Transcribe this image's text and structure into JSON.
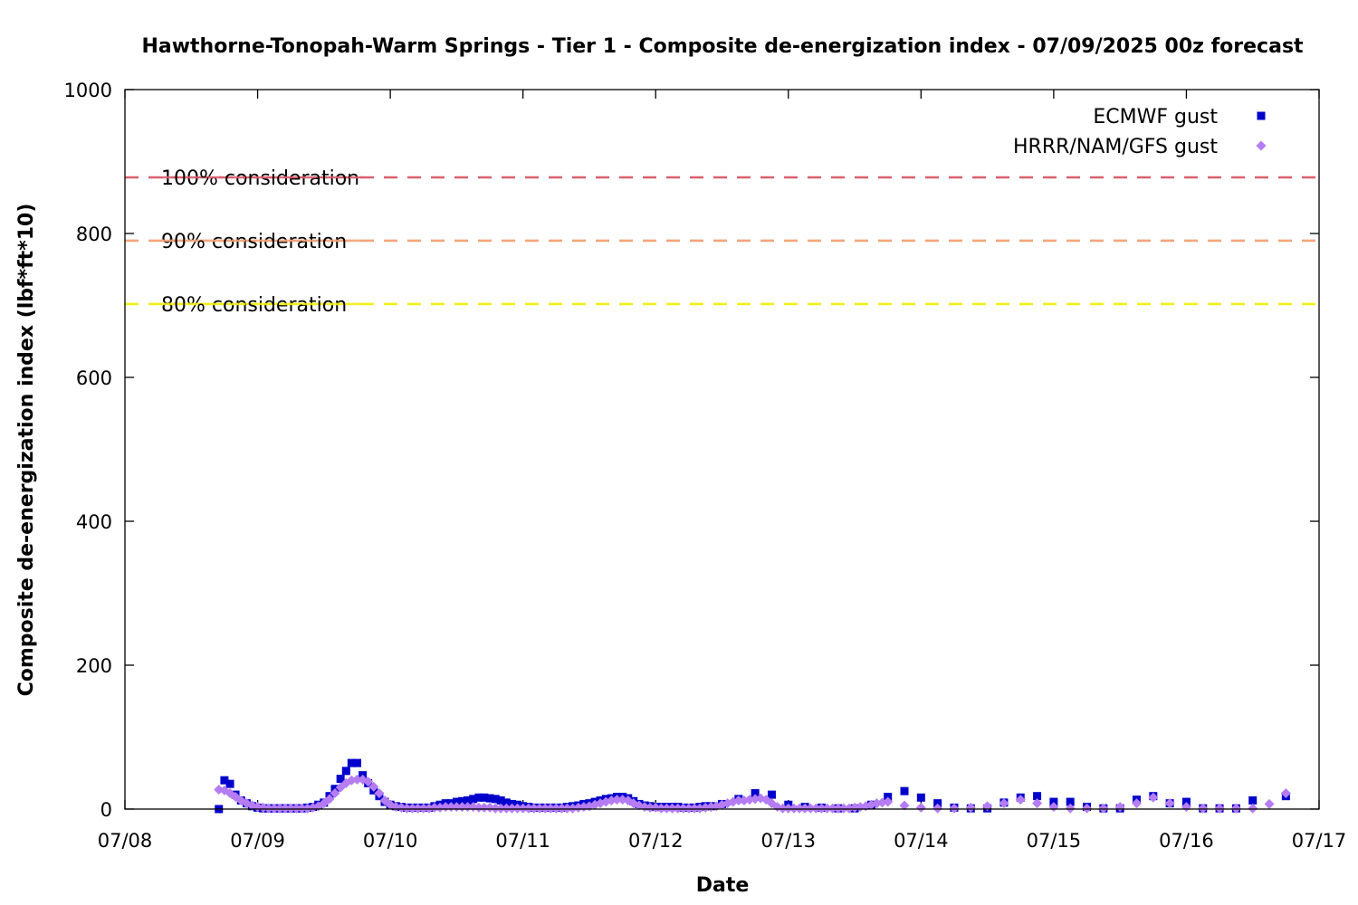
{
  "chart_data": {
    "type": "scatter",
    "title": "Hawthorne-Tonopah-Warm Springs - Tier 1 - Composite de-energization index - 07/09/2025 00z forecast",
    "xlabel": "Date",
    "ylabel": "Composite de-energization index (lbf*ft*10)",
    "x_unit": "days after 07/08 00z",
    "xlim": [
      "07/08",
      "07/17"
    ],
    "ylim": [
      0,
      1000
    ],
    "x_tick_labels": [
      "07/08",
      "07/09",
      "07/10",
      "07/11",
      "07/12",
      "07/13",
      "07/14",
      "07/15",
      "07/16",
      "07/17"
    ],
    "y_tick_labels": [
      "0",
      "200",
      "400",
      "600",
      "800",
      "1000"
    ],
    "y_tick_values": [
      0,
      200,
      400,
      600,
      800,
      1000
    ],
    "grid": false,
    "legend_position": "top-right",
    "reference_lines": [
      {
        "label": "100% consideration",
        "value": 878,
        "color": "#d95f6e"
      },
      {
        "label": "90% consideration",
        "value": 790,
        "color": "#f3a57c"
      },
      {
        "label": "80% consideration",
        "value": 702,
        "color": "#f2ef1a"
      }
    ],
    "series": [
      {
        "name": "ECMWF gust",
        "color": "#0000cc",
        "marker": "square",
        "points": [
          [
            0.708,
            0
          ],
          [
            0.75,
            40
          ],
          [
            0.792,
            35
          ],
          [
            0.833,
            20
          ],
          [
            0.875,
            12
          ],
          [
            0.917,
            8
          ],
          [
            0.958,
            4
          ],
          [
            1.0,
            2
          ],
          [
            1.042,
            1
          ],
          [
            1.083,
            1
          ],
          [
            1.125,
            1
          ],
          [
            1.167,
            1
          ],
          [
            1.208,
            1
          ],
          [
            1.25,
            1
          ],
          [
            1.292,
            1
          ],
          [
            1.333,
            1
          ],
          [
            1.375,
            2
          ],
          [
            1.417,
            3
          ],
          [
            1.458,
            6
          ],
          [
            1.5,
            9
          ],
          [
            1.542,
            18
          ],
          [
            1.583,
            28
          ],
          [
            1.625,
            42
          ],
          [
            1.667,
            53
          ],
          [
            1.708,
            64
          ],
          [
            1.75,
            64
          ],
          [
            1.792,
            47
          ],
          [
            1.833,
            36
          ],
          [
            1.875,
            26
          ],
          [
            1.917,
            18
          ],
          [
            1.958,
            10
          ],
          [
            2.0,
            6
          ],
          [
            2.042,
            4
          ],
          [
            2.083,
            3
          ],
          [
            2.125,
            2
          ],
          [
            2.167,
            2
          ],
          [
            2.208,
            2
          ],
          [
            2.25,
            2
          ],
          [
            2.292,
            2
          ],
          [
            2.333,
            4
          ],
          [
            2.375,
            6
          ],
          [
            2.417,
            8
          ],
          [
            2.458,
            8
          ],
          [
            2.5,
            10
          ],
          [
            2.542,
            11
          ],
          [
            2.583,
            12
          ],
          [
            2.625,
            14
          ],
          [
            2.667,
            16
          ],
          [
            2.708,
            16
          ],
          [
            2.75,
            15
          ],
          [
            2.792,
            14
          ],
          [
            2.833,
            12
          ],
          [
            2.875,
            9
          ],
          [
            2.917,
            7
          ],
          [
            2.958,
            6
          ],
          [
            3.0,
            4
          ],
          [
            3.042,
            3
          ],
          [
            3.083,
            2
          ],
          [
            3.125,
            2
          ],
          [
            3.167,
            2
          ],
          [
            3.208,
            2
          ],
          [
            3.25,
            2
          ],
          [
            3.292,
            2
          ],
          [
            3.333,
            3
          ],
          [
            3.375,
            4
          ],
          [
            3.417,
            5
          ],
          [
            3.458,
            7
          ],
          [
            3.5,
            8
          ],
          [
            3.542,
            10
          ],
          [
            3.583,
            12
          ],
          [
            3.625,
            14
          ],
          [
            3.667,
            15
          ],
          [
            3.708,
            17
          ],
          [
            3.75,
            17
          ],
          [
            3.792,
            15
          ],
          [
            3.833,
            11
          ],
          [
            3.875,
            7
          ],
          [
            3.917,
            5
          ],
          [
            3.958,
            4
          ],
          [
            4.0,
            3
          ],
          [
            4.042,
            3
          ],
          [
            4.083,
            3
          ],
          [
            4.125,
            3
          ],
          [
            4.167,
            3
          ],
          [
            4.208,
            2
          ],
          [
            4.25,
            2
          ],
          [
            4.292,
            2
          ],
          [
            4.333,
            3
          ],
          [
            4.375,
            4
          ],
          [
            4.417,
            4
          ],
          [
            4.5,
            7
          ],
          [
            4.625,
            14
          ],
          [
            4.75,
            22
          ],
          [
            4.875,
            20
          ],
          [
            5.0,
            6
          ],
          [
            5.125,
            3
          ],
          [
            5.25,
            2
          ],
          [
            5.375,
            1
          ],
          [
            5.5,
            1
          ],
          [
            5.625,
            6
          ],
          [
            5.75,
            17
          ],
          [
            5.875,
            25
          ],
          [
            6.0,
            16
          ],
          [
            6.125,
            8
          ],
          [
            6.25,
            2
          ],
          [
            6.375,
            1
          ],
          [
            6.5,
            1
          ],
          [
            6.625,
            9
          ],
          [
            6.75,
            16
          ],
          [
            6.875,
            18
          ],
          [
            7.0,
            10
          ],
          [
            7.125,
            10
          ],
          [
            7.25,
            3
          ],
          [
            7.375,
            1
          ],
          [
            7.5,
            1
          ],
          [
            7.625,
            13
          ],
          [
            7.75,
            18
          ],
          [
            7.875,
            8
          ],
          [
            8.0,
            10
          ],
          [
            8.125,
            1
          ],
          [
            8.25,
            1
          ],
          [
            8.375,
            1
          ],
          [
            8.5,
            12
          ],
          [
            8.75,
            18
          ]
        ]
      },
      {
        "name": "HRRR/NAM/GFS gust",
        "color": "#b57cf4",
        "marker": "diamond",
        "points": [
          [
            0.708,
            27
          ],
          [
            0.75,
            26
          ],
          [
            0.792,
            22
          ],
          [
            0.833,
            17
          ],
          [
            0.875,
            12
          ],
          [
            0.917,
            8
          ],
          [
            0.958,
            5
          ],
          [
            1.0,
            3
          ],
          [
            1.042,
            2
          ],
          [
            1.083,
            1
          ],
          [
            1.125,
            1
          ],
          [
            1.167,
            1
          ],
          [
            1.208,
            1
          ],
          [
            1.25,
            1
          ],
          [
            1.292,
            1
          ],
          [
            1.333,
            1
          ],
          [
            1.375,
            1
          ],
          [
            1.417,
            2
          ],
          [
            1.458,
            4
          ],
          [
            1.5,
            8
          ],
          [
            1.542,
            14
          ],
          [
            1.583,
            22
          ],
          [
            1.625,
            30
          ],
          [
            1.667,
            36
          ],
          [
            1.708,
            40
          ],
          [
            1.75,
            41
          ],
          [
            1.792,
            41
          ],
          [
            1.833,
            38
          ],
          [
            1.875,
            31
          ],
          [
            1.917,
            22
          ],
          [
            1.958,
            12
          ],
          [
            2.0,
            6
          ],
          [
            2.042,
            3
          ],
          [
            2.083,
            2
          ],
          [
            2.125,
            1
          ],
          [
            2.167,
            1
          ],
          [
            2.208,
            1
          ],
          [
            2.25,
            1
          ],
          [
            2.292,
            1
          ],
          [
            2.333,
            2
          ],
          [
            2.375,
            2
          ],
          [
            2.417,
            3
          ],
          [
            2.458,
            3
          ],
          [
            2.5,
            3
          ],
          [
            2.542,
            3
          ],
          [
            2.583,
            3
          ],
          [
            2.625,
            3
          ],
          [
            2.667,
            2
          ],
          [
            2.708,
            2
          ],
          [
            2.75,
            2
          ],
          [
            2.792,
            1
          ],
          [
            2.833,
            1
          ],
          [
            2.875,
            1
          ],
          [
            2.917,
            1
          ],
          [
            2.958,
            1
          ],
          [
            3.0,
            1
          ],
          [
            3.042,
            1
          ],
          [
            3.083,
            1
          ],
          [
            3.125,
            1
          ],
          [
            3.167,
            1
          ],
          [
            3.208,
            1
          ],
          [
            3.25,
            1
          ],
          [
            3.292,
            1
          ],
          [
            3.333,
            1
          ],
          [
            3.375,
            1
          ],
          [
            3.417,
            2
          ],
          [
            3.458,
            3
          ],
          [
            3.5,
            4
          ],
          [
            3.542,
            6
          ],
          [
            3.583,
            8
          ],
          [
            3.625,
            10
          ],
          [
            3.667,
            12
          ],
          [
            3.708,
            13
          ],
          [
            3.75,
            13
          ],
          [
            3.792,
            12
          ],
          [
            3.833,
            8
          ],
          [
            3.875,
            5
          ],
          [
            3.917,
            3
          ],
          [
            3.958,
            2
          ],
          [
            4.0,
            2
          ],
          [
            4.042,
            1
          ],
          [
            4.083,
            1
          ],
          [
            4.125,
            1
          ],
          [
            4.167,
            1
          ],
          [
            4.208,
            1
          ],
          [
            4.25,
            1
          ],
          [
            4.292,
            1
          ],
          [
            4.333,
            1
          ],
          [
            4.375,
            2
          ],
          [
            4.417,
            3
          ],
          [
            4.458,
            4
          ],
          [
            4.5,
            6
          ],
          [
            4.542,
            8
          ],
          [
            4.583,
            10
          ],
          [
            4.625,
            12
          ],
          [
            4.667,
            12
          ],
          [
            4.708,
            13
          ],
          [
            4.75,
            14
          ],
          [
            4.792,
            15
          ],
          [
            4.833,
            13
          ],
          [
            4.875,
            8
          ],
          [
            4.917,
            3
          ],
          [
            4.958,
            1
          ],
          [
            5.0,
            1
          ],
          [
            5.042,
            1
          ],
          [
            5.083,
            1
          ],
          [
            5.125,
            1
          ],
          [
            5.167,
            1
          ],
          [
            5.208,
            1
          ],
          [
            5.25,
            1
          ],
          [
            5.292,
            1
          ],
          [
            5.333,
            1
          ],
          [
            5.375,
            1
          ],
          [
            5.417,
            1
          ],
          [
            5.458,
            1
          ],
          [
            5.5,
            2
          ],
          [
            5.542,
            3
          ],
          [
            5.583,
            4
          ],
          [
            5.625,
            6
          ],
          [
            5.667,
            8
          ],
          [
            5.708,
            9
          ],
          [
            5.75,
            10
          ],
          [
            5.875,
            5
          ],
          [
            6.0,
            2
          ],
          [
            6.125,
            1
          ],
          [
            6.25,
            1
          ],
          [
            6.375,
            2
          ],
          [
            6.5,
            4
          ],
          [
            6.625,
            8
          ],
          [
            6.75,
            13
          ],
          [
            6.875,
            8
          ],
          [
            7.0,
            3
          ],
          [
            7.125,
            1
          ],
          [
            7.25,
            1
          ],
          [
            7.375,
            1
          ],
          [
            7.5,
            3
          ],
          [
            7.625,
            8
          ],
          [
            7.75,
            16
          ],
          [
            7.875,
            8
          ],
          [
            8.0,
            3
          ],
          [
            8.125,
            1
          ],
          [
            8.25,
            1
          ],
          [
            8.375,
            1
          ],
          [
            8.5,
            1
          ],
          [
            8.625,
            7
          ],
          [
            8.75,
            22
          ]
        ]
      }
    ]
  }
}
